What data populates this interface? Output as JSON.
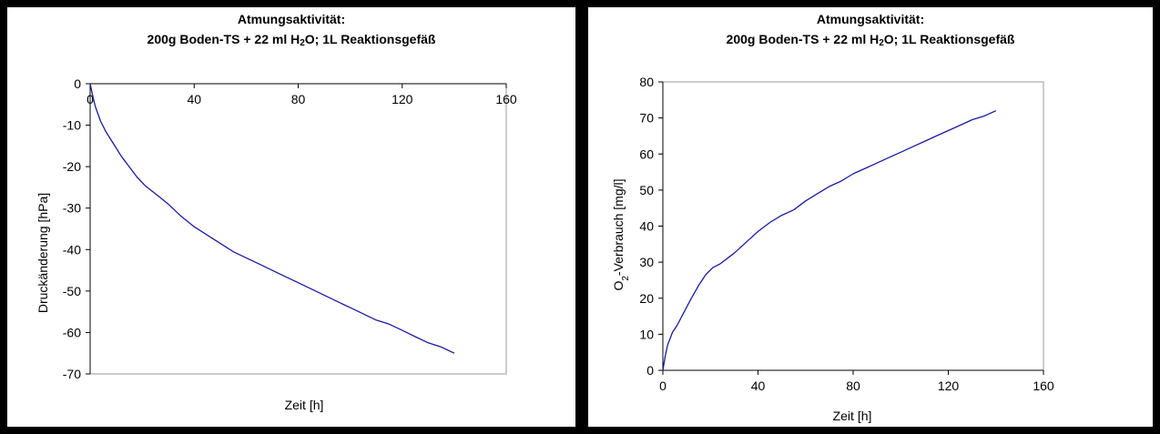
{
  "chart_data": [
    {
      "type": "line",
      "title_line1": "Atmungsaktivität:",
      "title_line2_pre": "200g Boden-TS + 22 ml H",
      "title_line2_sub": "2",
      "title_line2_post": "O; 1L Reaktionsgefäß",
      "xlabel": "Zeit [h]",
      "ylabel": "Druckänderung [hPa]",
      "xlim": [
        0,
        160
      ],
      "ylim": [
        -70,
        0
      ],
      "x_ticks": [
        0,
        40,
        80,
        120,
        160
      ],
      "y_ticks": [
        0,
        -10,
        -20,
        -30,
        -40,
        -50,
        -60,
        -70
      ],
      "x_axis_position": "top",
      "grid": false,
      "series_color": "#1a1aa0",
      "series": [
        {
          "x": [
            0,
            1,
            2,
            4,
            6,
            8,
            10,
            12,
            15,
            18,
            21,
            24,
            27,
            30,
            35,
            40,
            45,
            50,
            55,
            60,
            65,
            70,
            75,
            80,
            85,
            90,
            95,
            100,
            105,
            110,
            115,
            120,
            125,
            130,
            135,
            140
          ],
          "y": [
            0,
            -3,
            -5.5,
            -9,
            -11.5,
            -13.5,
            -15.5,
            -17.5,
            -20,
            -22.5,
            -24.5,
            -26,
            -27.5,
            -29,
            -32,
            -34.5,
            -36.5,
            -38.5,
            -40.5,
            -42,
            -43.5,
            -45,
            -46.5,
            -48,
            -49.5,
            -51,
            -52.5,
            -54,
            -55.5,
            -57,
            -58,
            -59.5,
            -61,
            -62.5,
            -63.5,
            -65
          ]
        }
      ]
    },
    {
      "type": "line",
      "title_line1": "Atmungsaktivität:",
      "title_line2_pre": "200g Boden-TS + 22 ml H",
      "title_line2_sub": "2",
      "title_line2_post": "O; 1L Reaktionsgefäß",
      "xlabel": "Zeit [h]",
      "ylabel_pre": "O",
      "ylabel_sub": "2",
      "ylabel_post": "-Verbrauch [mg/l]",
      "xlim": [
        0,
        160
      ],
      "ylim": [
        0,
        80
      ],
      "x_ticks": [
        0,
        40,
        80,
        120,
        160
      ],
      "y_ticks": [
        0,
        10,
        20,
        30,
        40,
        50,
        60,
        70,
        80
      ],
      "x_axis_position": "bottom",
      "grid": false,
      "series_color": "#1a1aa0",
      "series": [
        {
          "x": [
            0,
            1,
            2,
            4,
            6,
            8,
            10,
            12,
            15,
            18,
            21,
            24,
            27,
            30,
            35,
            40,
            45,
            50,
            55,
            60,
            65,
            70,
            75,
            80,
            85,
            90,
            95,
            100,
            105,
            110,
            115,
            120,
            125,
            130,
            135,
            140
          ],
          "y": [
            0,
            4,
            7,
            10.5,
            12.5,
            15,
            17.5,
            20,
            23.5,
            26.5,
            28.5,
            29.5,
            31,
            32.5,
            35.5,
            38.5,
            41,
            43,
            44.5,
            47,
            49,
            51,
            52.5,
            54.5,
            56,
            57.5,
            59,
            60.5,
            62,
            63.5,
            65,
            66.5,
            68,
            69.5,
            70.5,
            72
          ]
        }
      ]
    }
  ]
}
